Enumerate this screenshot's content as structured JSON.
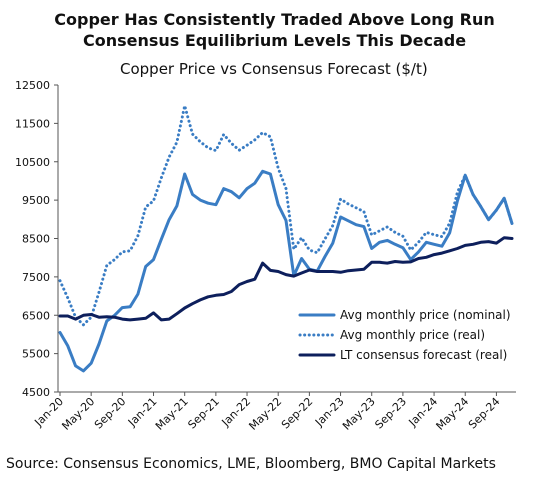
{
  "header": {
    "title_line1": "Copper Has Consistently Traded Above Long Run",
    "title_line2": "Consensus Equilibrium Levels This Decade"
  },
  "source": "Source: Consensus Economics, LME, Bloomberg, BMO Capital Markets",
  "chart_data": {
    "type": "line",
    "title": "Copper Price vs Consensus Forecast ($/t)",
    "xlabel": "",
    "ylabel": "",
    "ylim": [
      4500,
      12500
    ],
    "yticks": [
      4500,
      5500,
      6500,
      7500,
      8500,
      9500,
      10500,
      11500,
      12500
    ],
    "ytick_labels": [
      "4500",
      "5500",
      "6500",
      "7500",
      "8500",
      "9500",
      "10500",
      "11500",
      "12500"
    ],
    "x": [
      "Jan-20",
      "Feb-20",
      "Mar-20",
      "Apr-20",
      "May-20",
      "Jun-20",
      "Jul-20",
      "Aug-20",
      "Sep-20",
      "Oct-20",
      "Nov-20",
      "Dec-20",
      "Jan-21",
      "Feb-21",
      "Mar-21",
      "Apr-21",
      "May-21",
      "Jun-21",
      "Jul-21",
      "Aug-21",
      "Sep-21",
      "Oct-21",
      "Nov-21",
      "Dec-21",
      "Jan-22",
      "Feb-22",
      "Mar-22",
      "Apr-22",
      "May-22",
      "Jun-22",
      "Jul-22",
      "Aug-22",
      "Sep-22",
      "Oct-22",
      "Nov-22",
      "Dec-22",
      "Jan-23",
      "Feb-23",
      "Mar-23",
      "Apr-23",
      "May-23",
      "Jun-23",
      "Jul-23",
      "Aug-23",
      "Sep-23",
      "Oct-23",
      "Nov-23",
      "Dec-23",
      "Jan-24",
      "Feb-24",
      "Mar-24",
      "Apr-24",
      "May-24",
      "Jun-24",
      "Jul-24",
      "Aug-24",
      "Sep-24",
      "Oct-24",
      "Nov-24"
    ],
    "xtick_labels": [
      "Jan-20",
      "May-20",
      "Sep-20",
      "Jan-21",
      "May-21",
      "Sep-21",
      "Jan-22",
      "May-22",
      "Sep-22",
      "Jan-23",
      "May-23",
      "Sep-23",
      "Jan-24",
      "May-24",
      "Sep-24"
    ],
    "series": [
      {
        "name": "Avg monthly price (nominal)",
        "color": "#3a7dc4",
        "style": "solid",
        "values": [
          6050,
          5700,
          5180,
          5050,
          5250,
          5750,
          6350,
          6500,
          6700,
          6720,
          7050,
          7770,
          7950,
          8480,
          8990,
          9350,
          10180,
          9650,
          9500,
          9420,
          9380,
          9800,
          9720,
          9560,
          9800,
          9940,
          10250,
          10180,
          9380,
          8970,
          7530,
          7980,
          7700,
          7650,
          8030,
          8380,
          9060,
          8960,
          8860,
          8810,
          8240,
          8400,
          8450,
          8350,
          8260,
          7950,
          8150,
          8400,
          8350,
          8300,
          8650,
          9480,
          10150,
          9650,
          9330,
          8990,
          9240,
          9550,
          8890
        ]
      },
      {
        "name": "Avg monthly price (real)",
        "color": "#3a7dc4",
        "style": "dotted",
        "values": [
          7400,
          6950,
          6450,
          6250,
          6450,
          7100,
          7800,
          7950,
          8150,
          8180,
          8570,
          9320,
          9480,
          10080,
          10620,
          11010,
          11960,
          11220,
          11020,
          10860,
          10790,
          11210,
          10980,
          10800,
          10930,
          11070,
          11260,
          11150,
          10330,
          9800,
          8220,
          8520,
          8200,
          8130,
          8490,
          8840,
          9530,
          9400,
          9300,
          9200,
          8590,
          8700,
          8800,
          8660,
          8560,
          8200,
          8400,
          8660,
          8600,
          8550,
          8900,
          9700,
          10150,
          9650,
          9330,
          8990,
          9240,
          9550,
          8890
        ]
      },
      {
        "name": "LT consensus forecast (real)",
        "color": "#0d1f5c",
        "style": "solid",
        "values": [
          6480,
          6480,
          6400,
          6500,
          6520,
          6450,
          6460,
          6450,
          6400,
          6380,
          6400,
          6420,
          6560,
          6380,
          6400,
          6540,
          6690,
          6800,
          6900,
          6980,
          7020,
          7040,
          7120,
          7300,
          7380,
          7440,
          7860,
          7670,
          7640,
          7560,
          7520,
          7600,
          7680,
          7640,
          7640,
          7640,
          7620,
          7660,
          7680,
          7700,
          7880,
          7880,
          7860,
          7900,
          7880,
          7890,
          7980,
          8010,
          8080,
          8120,
          8180,
          8240,
          8320,
          8350,
          8400,
          8420,
          8380,
          8520,
          8500
        ]
      }
    ],
    "legend": {
      "position": "bottom-right",
      "entries": [
        "Avg monthly price (nominal)",
        "Avg monthly price (real)",
        "LT consensus forecast (real)"
      ]
    },
    "grid": false
  }
}
